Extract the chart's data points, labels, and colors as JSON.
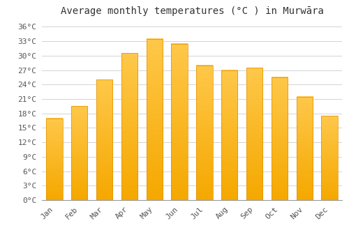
{
  "title": "Average monthly temperatures (°C ) in Murwāra",
  "months": [
    "Jan",
    "Feb",
    "Mar",
    "Apr",
    "May",
    "Jun",
    "Jul",
    "Aug",
    "Sep",
    "Oct",
    "Nov",
    "Dec"
  ],
  "temperatures": [
    17.0,
    19.5,
    25.0,
    30.5,
    33.5,
    32.5,
    28.0,
    27.0,
    27.5,
    25.5,
    21.5,
    17.5
  ],
  "bar_color_top": "#FFC84A",
  "bar_color_bottom": "#F5A800",
  "bar_edge_color": "#E09000",
  "background_color": "#ffffff",
  "grid_color": "#cccccc",
  "text_color": "#555555",
  "ytick_labels": [
    "0°C",
    "3°C",
    "6°C",
    "9°C",
    "12°C",
    "15°C",
    "18°C",
    "21°C",
    "24°C",
    "27°C",
    "30°C",
    "33°C",
    "36°C"
  ],
  "ytick_values": [
    0,
    3,
    6,
    9,
    12,
    15,
    18,
    21,
    24,
    27,
    30,
    33,
    36
  ],
  "ylim": [
    0,
    37.5
  ],
  "title_fontsize": 10,
  "tick_fontsize": 8,
  "font_family": "monospace",
  "bar_width": 0.65
}
